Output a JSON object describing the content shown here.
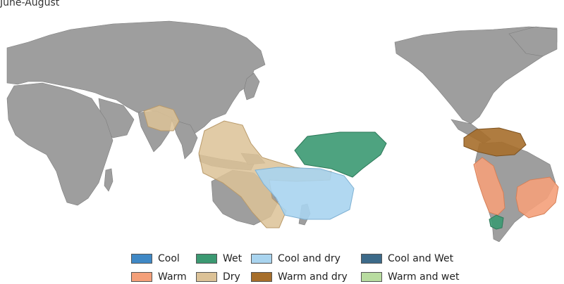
{
  "title": "June-August",
  "legend": [
    {
      "label": "Cool",
      "color": "#3f88c5"
    },
    {
      "label": "Wet",
      "color": "#3b9972"
    },
    {
      "label": "Cool and dry",
      "color": "#a9d4ef"
    },
    {
      "label": "Cool and Wet",
      "color": "#3c6a89"
    },
    {
      "label": "Warm",
      "color": "#f4a07a"
    },
    {
      "label": "Dry",
      "color": "#dcc297"
    },
    {
      "label": "Warm and dry",
      "color": "#a66e2b"
    },
    {
      "label": "Warm and wet",
      "color": "#b8dca0"
    }
  ],
  "regions": [
    {
      "name": "india",
      "type": "Dry"
    },
    {
      "name": "indonesia-australia",
      "type": "Dry"
    },
    {
      "name": "central-pacific",
      "type": "Wet"
    },
    {
      "name": "southwest-pacific",
      "type": "Cool and dry"
    },
    {
      "name": "central-america",
      "type": "Warm and dry"
    },
    {
      "name": "western-south-america",
      "type": "Warm"
    },
    {
      "name": "eastern-brazil",
      "type": "Warm"
    },
    {
      "name": "central-chile",
      "type": "Wet"
    }
  ]
}
